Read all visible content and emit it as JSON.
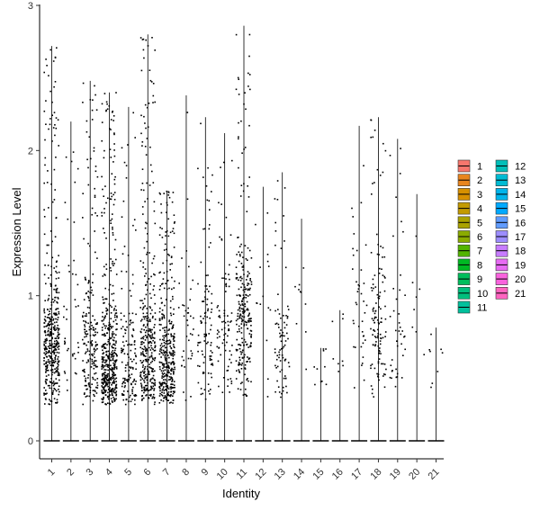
{
  "chart_data": {
    "type": "violin",
    "title": "",
    "xlabel": "Identity",
    "ylabel": "Expression Level",
    "ylim": [
      0,
      3
    ],
    "yticks": [
      "0",
      "1",
      "2",
      "3"
    ],
    "categories": [
      "1",
      "2",
      "3",
      "4",
      "5",
      "6",
      "7",
      "8",
      "9",
      "10",
      "11",
      "12",
      "13",
      "14",
      "15",
      "16",
      "17",
      "18",
      "19",
      "20",
      "21"
    ],
    "max_values": [
      2.72,
      2.2,
      2.48,
      2.4,
      2.3,
      2.8,
      1.72,
      2.38,
      2.23,
      2.12,
      2.86,
      1.75,
      1.85,
      1.53,
      0.64,
      0.9,
      2.17,
      2.23,
      2.08,
      1.7,
      0.78
    ],
    "points_per_group": [
      420,
      40,
      200,
      460,
      140,
      340,
      360,
      40,
      100,
      80,
      260,
      15,
      80,
      10,
      10,
      8,
      40,
      120,
      40,
      8,
      8
    ],
    "point_center": [
      0.6,
      0.7,
      0.55,
      0.45,
      0.45,
      0.55,
      0.45,
      0.7,
      0.65,
      0.7,
      0.8,
      1.0,
      0.6,
      0.9,
      0.55,
      0.6,
      0.8,
      0.7,
      0.6,
      0.9,
      0.45
    ],
    "legend": {
      "entries": [
        "1",
        "2",
        "3",
        "4",
        "5",
        "6",
        "7",
        "8",
        "9",
        "10",
        "11",
        "12",
        "13",
        "14",
        "15",
        "16",
        "17",
        "18",
        "19",
        "20",
        "21"
      ],
      "colors": [
        "#F8766D",
        "#E8851E",
        "#D79000",
        "#C39A00",
        "#AAA200",
        "#8BAB00",
        "#53B400",
        "#00B923",
        "#00BD5C",
        "#00BF7D",
        "#00C09C",
        "#00BFB9",
        "#00BBD3",
        "#00B4EB",
        "#00A9FF",
        "#619CFF",
        "#9C8DFF",
        "#C77CFF",
        "#E76BF3",
        "#F963DD",
        "#FF64C0"
      ]
    },
    "grid": false,
    "legend_position": "right"
  }
}
